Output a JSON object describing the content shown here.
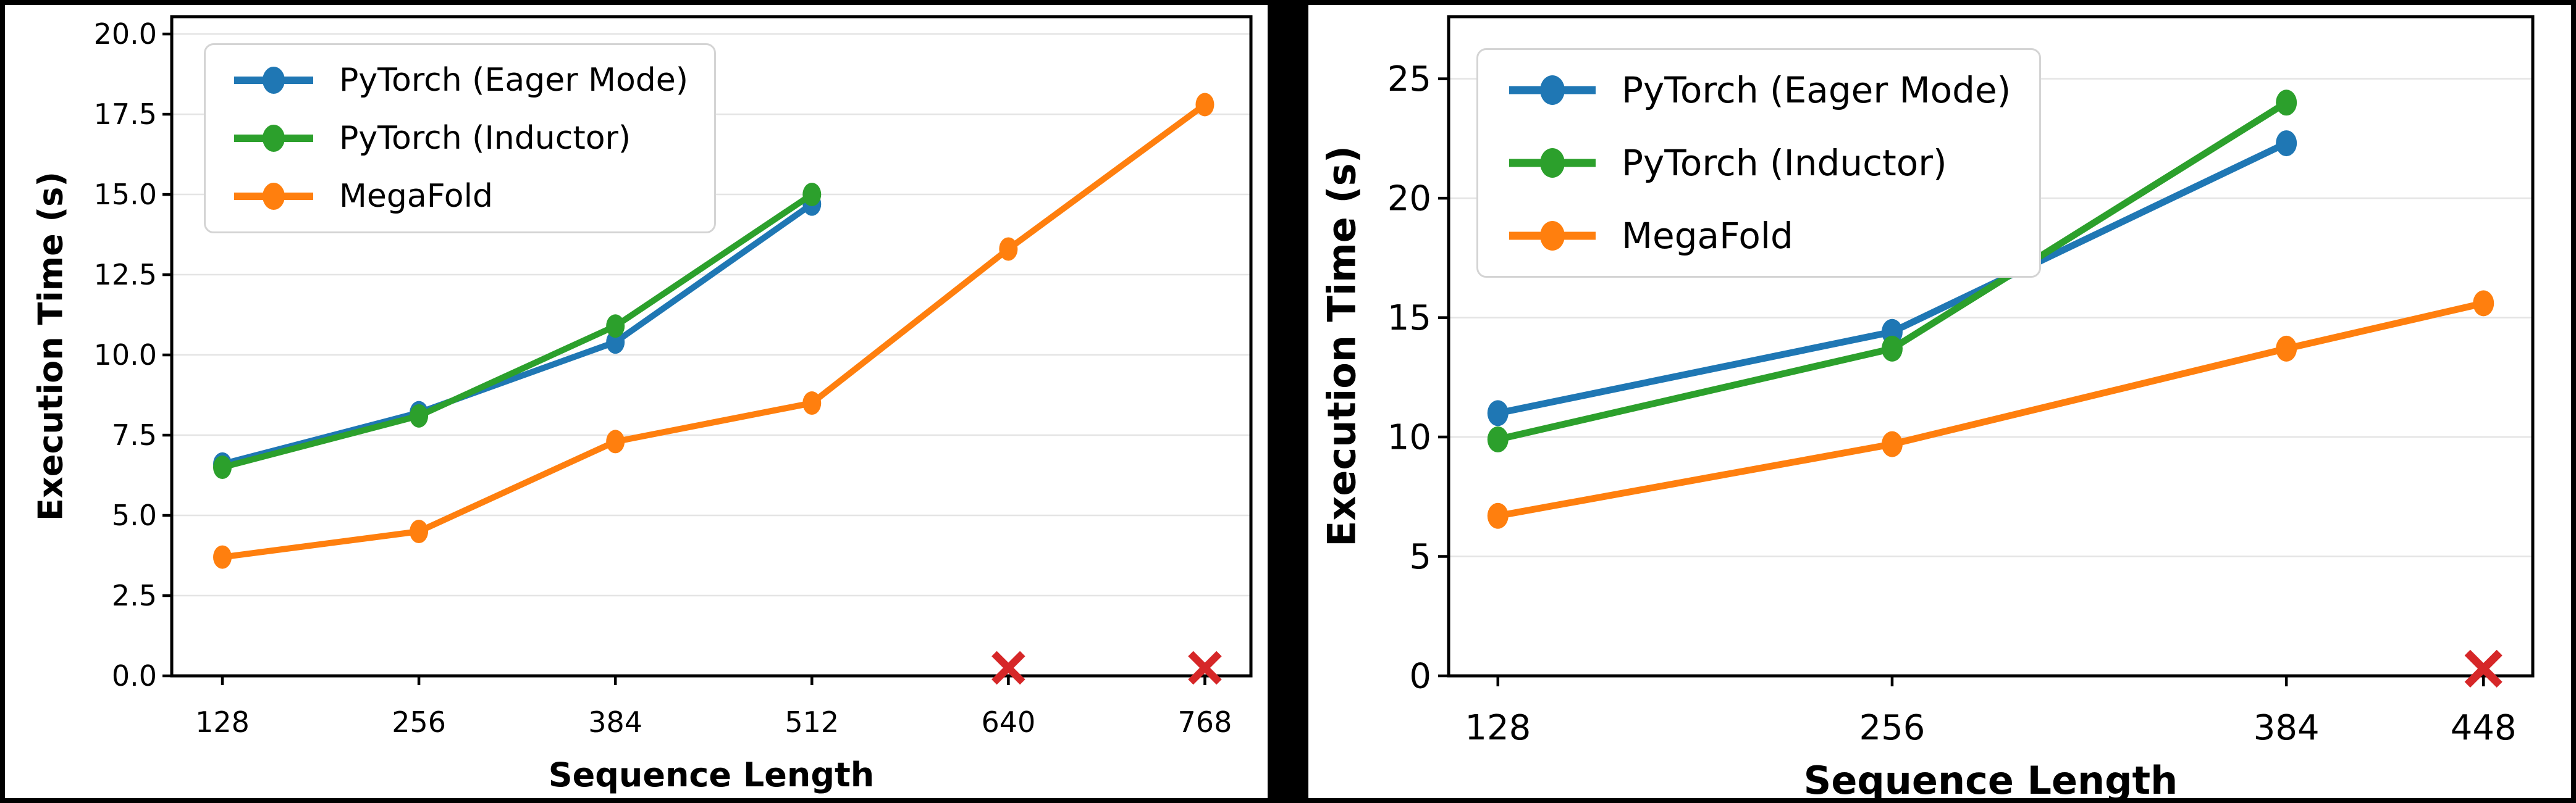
{
  "figure": {
    "background_color": "#000000",
    "panel_color": "#ffffff",
    "marker_failure_color": "#d62728",
    "series_colors": {
      "pytorch_eager": "#1f77b4",
      "pytorch_inductor": "#2ca02c",
      "megafold": "#ff7f0e"
    }
  },
  "chart_data": [
    {
      "type": "line",
      "title": "",
      "xlabel": "Sequence Length",
      "ylabel": "Execution Time (s)",
      "x_ticks": [
        128,
        256,
        384,
        512,
        640,
        768
      ],
      "x_tick_labels": [
        "128",
        "256",
        "384",
        "512",
        "640",
        "768"
      ],
      "y_ticks": [
        0,
        2.5,
        5,
        7.5,
        10,
        12.5,
        15,
        17.5,
        20
      ],
      "y_tick_labels": [
        "0.0",
        "2.5",
        "5.0",
        "7.5",
        "10.0",
        "12.5",
        "15.0",
        "17.5",
        "20.0"
      ],
      "xlim": [
        95,
        798
      ],
      "ylim": [
        0,
        20.54
      ],
      "grid": "horizontal",
      "legend_position": "upper-left",
      "series": [
        {
          "name": "PyTorch (Eager Mode)",
          "color": "#1f77b4",
          "x": [
            128,
            256,
            384,
            512
          ],
          "y": [
            6.6,
            8.2,
            10.4,
            14.7
          ]
        },
        {
          "name": "PyTorch (Inductor)",
          "color": "#2ca02c",
          "x": [
            128,
            256,
            384,
            512
          ],
          "y": [
            6.5,
            8.1,
            10.9,
            15.0
          ]
        },
        {
          "name": "MegaFold",
          "color": "#ff7f0e",
          "x": [
            128,
            256,
            384,
            512,
            640,
            768
          ],
          "y": [
            3.7,
            4.5,
            7.3,
            8.5,
            13.3,
            17.8
          ]
        }
      ],
      "x_markers": {
        "symbol": "x",
        "color": "#d62728",
        "points": [
          {
            "x": 640,
            "y": 0.25
          },
          {
            "x": 768,
            "y": 0.25
          }
        ]
      }
    },
    {
      "type": "line",
      "title": "",
      "xlabel": "Sequence Length",
      "ylabel": "Execution Time (s)",
      "x_ticks": [
        128,
        256,
        384,
        448
      ],
      "x_tick_labels": [
        "128",
        "256",
        "384",
        "448"
      ],
      "y_ticks": [
        0,
        5,
        10,
        15,
        20,
        25
      ],
      "y_tick_labels": [
        "0",
        "5",
        "10",
        "15",
        "20",
        "25"
      ],
      "xlim": [
        112,
        464
      ],
      "ylim": [
        0,
        27.6
      ],
      "grid": "horizontal",
      "legend_position": "upper-left",
      "series": [
        {
          "name": "PyTorch (Eager Mode)",
          "color": "#1f77b4",
          "x": [
            128,
            256,
            384
          ],
          "y": [
            11.0,
            14.4,
            22.3
          ]
        },
        {
          "name": "PyTorch (Inductor)",
          "color": "#2ca02c",
          "x": [
            128,
            256,
            384
          ],
          "y": [
            9.9,
            13.7,
            24.0
          ]
        },
        {
          "name": "MegaFold",
          "color": "#ff7f0e",
          "x": [
            128,
            256,
            384,
            448
          ],
          "y": [
            6.7,
            9.7,
            13.7,
            15.6
          ]
        }
      ],
      "x_markers": {
        "symbol": "x",
        "color": "#d62728",
        "points": [
          {
            "x": 448,
            "y": 0.3
          }
        ]
      }
    }
  ]
}
